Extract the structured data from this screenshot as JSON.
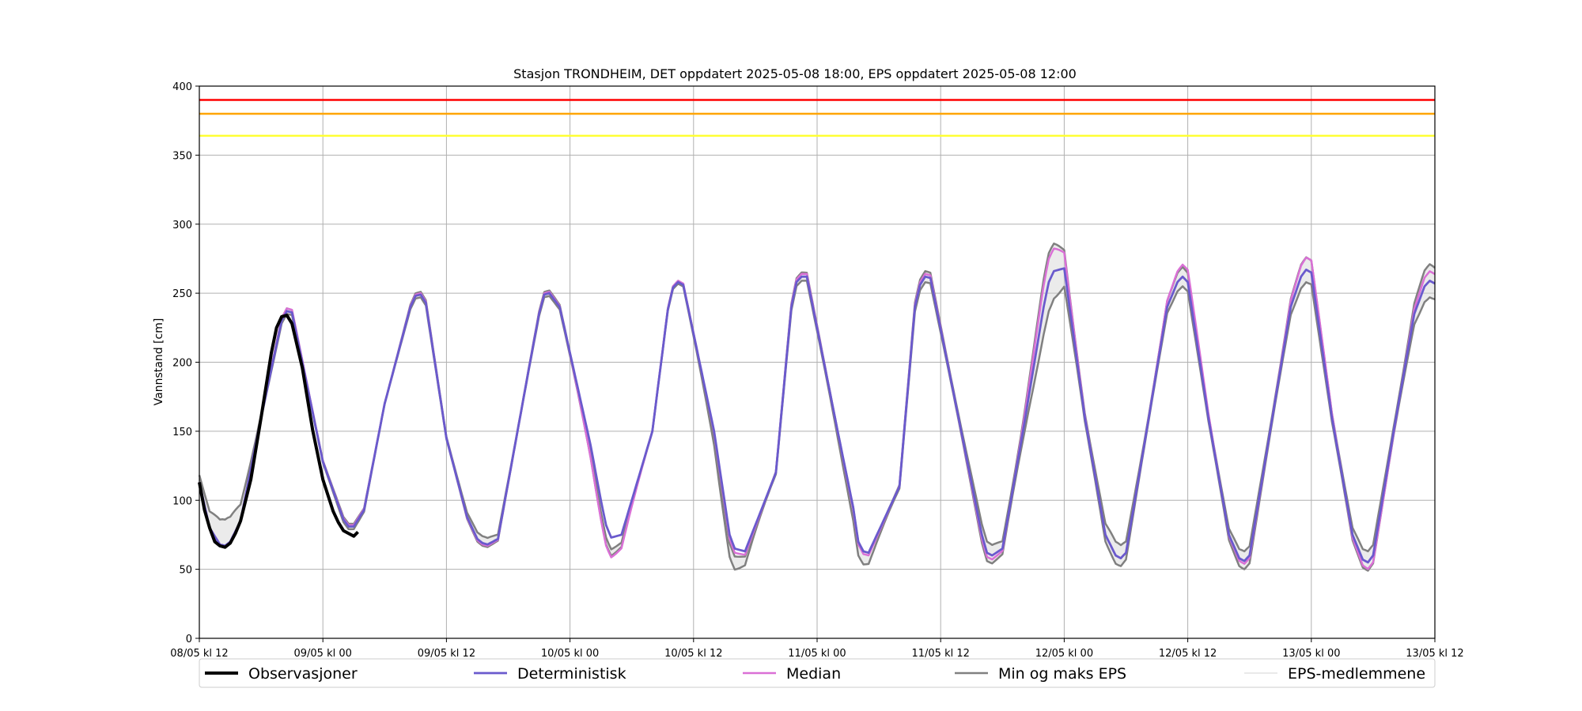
{
  "chart_data": {
    "type": "line",
    "title": "Stasjon TRONDHEIM, DET oppdatert 2025-05-08 18:00, EPS oppdatert 2025-05-08 12:00",
    "xlabel": "",
    "ylabel": "Vannstand [cm]",
    "ylim": [
      0,
      400
    ],
    "yticks": [
      0,
      50,
      100,
      150,
      200,
      250,
      300,
      350,
      400
    ],
    "x_unit": "hours from 08/05 kl 12",
    "xlim": [
      0,
      120
    ],
    "xticks": [
      {
        "x": 0,
        "label": "08/05 kl 12"
      },
      {
        "x": 12,
        "label": "09/05 kl 00"
      },
      {
        "x": 24,
        "label": "09/05 kl 12"
      },
      {
        "x": 36,
        "label": "10/05 kl 00"
      },
      {
        "x": 48,
        "label": "10/05 kl 12"
      },
      {
        "x": 60,
        "label": "11/05 kl 00"
      },
      {
        "x": 72,
        "label": "11/05 kl 12"
      },
      {
        "x": 84,
        "label": "12/05 kl 00"
      },
      {
        "x": 96,
        "label": "12/05 kl 12"
      },
      {
        "x": 108,
        "label": "13/05 kl 00"
      },
      {
        "x": 120,
        "label": "13/05 kl 12"
      }
    ],
    "grid": true,
    "threshold_lines": [
      {
        "value": 390,
        "color": "#ff0000"
      },
      {
        "value": 380,
        "color": "#ffa500"
      },
      {
        "value": 364,
        "color": "#ffff33"
      }
    ],
    "series": [
      {
        "name": "Observasjoner",
        "color": "#000000",
        "x": [
          0,
          0.5,
          1,
          1.5,
          2,
          2.5,
          3,
          3.5,
          4,
          5,
          6,
          7,
          7.5,
          8,
          8.5,
          9,
          10,
          11,
          12,
          13,
          13.5,
          14,
          14.5,
          15,
          15.4
        ],
        "y": [
          113,
          93,
          80,
          70,
          67,
          66,
          69,
          76,
          85,
          115,
          160,
          207,
          225,
          233,
          234,
          228,
          196,
          151,
          115,
          92,
          84,
          78,
          76,
          74,
          77
        ]
      },
      {
        "name": "Deterministisk",
        "color": "#6a5acd",
        "x": [
          0,
          1,
          2,
          2.5,
          3,
          4,
          6,
          8,
          8.5,
          9,
          10,
          12,
          14,
          14.5,
          15,
          16,
          18,
          20.5,
          21,
          21.5,
          22,
          24,
          26,
          27,
          27.5,
          28,
          29,
          32,
          33,
          33.5,
          34,
          35,
          38,
          39,
          39.5,
          40,
          41,
          44,
          45.5,
          46,
          46.5,
          47,
          50,
          51,
          51.5,
          52,
          53,
          56,
          57.5,
          58,
          58.5,
          59,
          62,
          63.5,
          64,
          64.5,
          65,
          68,
          69.5,
          70,
          70.5,
          71,
          74,
          76,
          76.5,
          77,
          78,
          80,
          82,
          82.5,
          83,
          84,
          86,
          88,
          89,
          89.5,
          90,
          92,
          94,
          95,
          95.5,
          96,
          98,
          100,
          101,
          101.5,
          102,
          104,
          106,
          107,
          107.5,
          108,
          110,
          112,
          113,
          113.5,
          114,
          116,
          118,
          119,
          119.5,
          120
        ],
        "y": [
          113,
          80,
          68,
          67,
          70,
          85,
          160,
          230,
          237,
          236,
          200,
          128,
          86,
          81,
          81,
          93,
          170,
          240,
          248,
          249,
          243,
          145,
          88,
          72,
          69,
          68,
          72,
          195,
          235,
          249,
          250,
          240,
          140,
          100,
          82,
          73,
          75,
          150,
          238,
          254,
          258,
          256,
          150,
          100,
          75,
          65,
          63,
          120,
          240,
          258,
          262,
          262,
          150,
          95,
          70,
          63,
          62,
          110,
          240,
          256,
          262,
          261,
          150,
          75,
          62,
          60,
          65,
          150,
          240,
          258,
          266,
          268,
          160,
          75,
          60,
          58,
          62,
          150,
          240,
          258,
          262,
          258,
          160,
          75,
          58,
          56,
          60,
          150,
          240,
          262,
          267,
          265,
          160,
          75,
          57,
          55,
          60,
          150,
          235,
          255,
          259,
          257
        ]
      },
      {
        "name": "Median",
        "color": "#da70d6",
        "x": [
          3,
          4,
          8.5,
          9,
          15,
          21.5,
          27.5,
          34,
          39.5,
          40,
          46.5,
          52,
          58.5,
          64.5,
          70.5,
          76.5,
          82.5,
          83,
          89.5,
          95.5,
          96,
          101.5,
          107.5,
          108,
          113.5,
          114,
          119.5,
          120
        ],
        "y": [
          70,
          85,
          238,
          237,
          82,
          250,
          68,
          251,
          69,
          71,
          259,
          62,
          264,
          61,
          264,
          59,
          271,
          270,
          58,
          265,
          264,
          54,
          271,
          270,
          54,
          56,
          263,
          260
        ]
      },
      {
        "name": "Min og maks EPS",
        "color": "#808080",
        "x_min": [
          2.5,
          14.5,
          27.5,
          39.5,
          51.5,
          64,
          76.5,
          89,
          101.5,
          113.5
        ],
        "y_min": [
          66,
          79,
          67,
          68,
          59,
          60,
          56,
          54,
          50,
          49
        ],
        "x_max": [
          8.5,
          21.5,
          34,
          46.5,
          58.5,
          70.5,
          82.5,
          95.5,
          107.5,
          119.5
        ],
        "y_max": [
          239,
          251,
          252,
          259,
          265,
          266,
          279,
          269,
          276,
          271
        ],
        "upper_min": [
          86,
          83,
          74,
          73,
          69,
          70,
          70,
          70,
          63,
          63
        ]
      },
      {
        "name": "EPS-medlemmene",
        "color": "#d3d3d3"
      }
    ],
    "legend": {
      "position": "bottom",
      "entries": [
        "Observasjoner",
        "Deterministisk",
        "Median",
        "Min og maks EPS",
        "EPS-medlemmene"
      ]
    }
  }
}
